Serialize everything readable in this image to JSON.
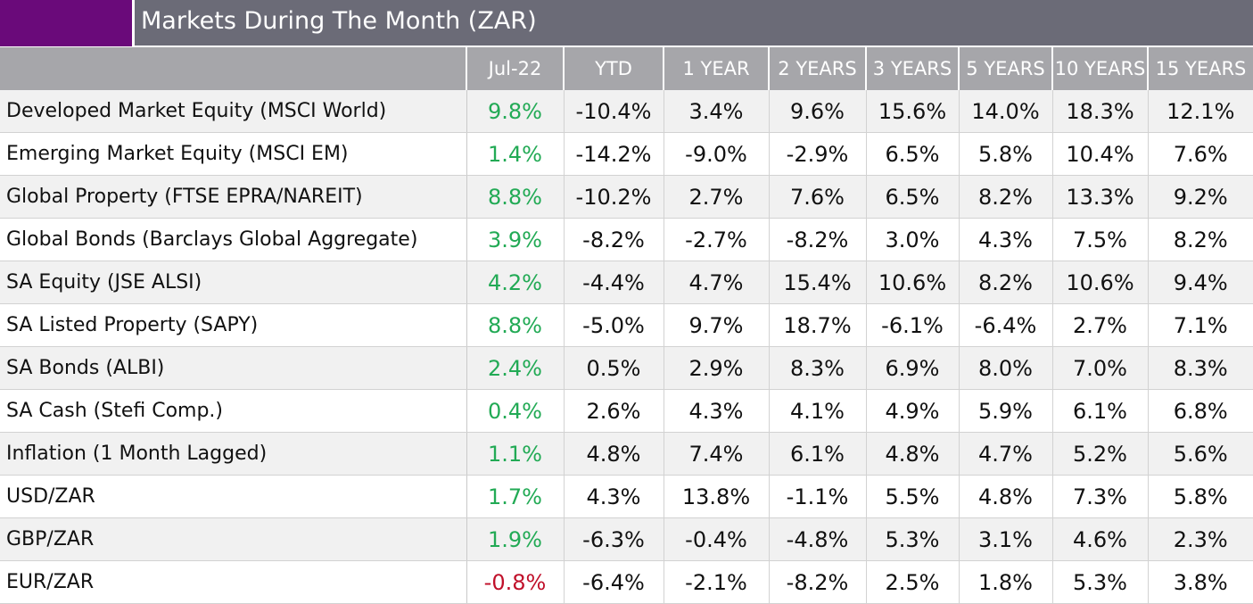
{
  "title": "Markets During The Month (ZAR)",
  "colors": {
    "accent": "#6a0a7a",
    "title_bar": "#6b6b77",
    "header_bar": "#a6a6aa",
    "positive": "#22aa55",
    "negative": "#c0102a"
  },
  "table": {
    "columns": [
      "",
      "Jul-22",
      "YTD",
      "1 YEAR",
      "2 YEARS",
      "3 YEARS",
      "5 YEARS",
      "10 YEARS",
      "15 YEARS"
    ],
    "rows": [
      {
        "label": "Developed Market Equity (MSCI World)",
        "values": [
          "9.8%",
          "-10.4%",
          "3.4%",
          "9.6%",
          "15.6%",
          "14.0%",
          "18.3%",
          "12.1%"
        ],
        "month_sign": "pos"
      },
      {
        "label": "Emerging Market Equity (MSCI EM)",
        "values": [
          "1.4%",
          "-14.2%",
          "-9.0%",
          "-2.9%",
          "6.5%",
          "5.8%",
          "10.4%",
          "7.6%"
        ],
        "month_sign": "pos"
      },
      {
        "label": "Global Property (FTSE EPRA/NAREIT)",
        "values": [
          "8.8%",
          "-10.2%",
          "2.7%",
          "7.6%",
          "6.5%",
          "8.2%",
          "13.3%",
          "9.2%"
        ],
        "month_sign": "pos"
      },
      {
        "label": "Global Bonds (Barclays Global Aggregate)",
        "values": [
          "3.9%",
          "-8.2%",
          "-2.7%",
          "-8.2%",
          "3.0%",
          "4.3%",
          "7.5%",
          "8.2%"
        ],
        "month_sign": "pos"
      },
      {
        "label": "SA Equity (JSE ALSI)",
        "values": [
          "4.2%",
          "-4.4%",
          "4.7%",
          "15.4%",
          "10.6%",
          "8.2%",
          "10.6%",
          "9.4%"
        ],
        "month_sign": "pos"
      },
      {
        "label": "SA Listed Property (SAPY)",
        "values": [
          "8.8%",
          "-5.0%",
          "9.7%",
          "18.7%",
          "-6.1%",
          "-6.4%",
          "2.7%",
          "7.1%"
        ],
        "month_sign": "pos"
      },
      {
        "label": "SA Bonds (ALBI)",
        "values": [
          "2.4%",
          "0.5%",
          "2.9%",
          "8.3%",
          "6.9%",
          "8.0%",
          "7.0%",
          "8.3%"
        ],
        "month_sign": "pos"
      },
      {
        "label": "SA Cash (Stefi Comp.)",
        "values": [
          "0.4%",
          "2.6%",
          "4.3%",
          "4.1%",
          "4.9%",
          "5.9%",
          "6.1%",
          "6.8%"
        ],
        "month_sign": "pos"
      },
      {
        "label": "Inflation (1 Month Lagged)",
        "values": [
          "1.1%",
          "4.8%",
          "7.4%",
          "6.1%",
          "4.8%",
          "4.7%",
          "5.2%",
          "5.6%"
        ],
        "month_sign": "pos"
      },
      {
        "label": "USD/ZAR",
        "values": [
          "1.7%",
          "4.3%",
          "13.8%",
          "-1.1%",
          "5.5%",
          "4.8%",
          "7.3%",
          "5.8%"
        ],
        "month_sign": "pos"
      },
      {
        "label": "GBP/ZAR",
        "values": [
          "1.9%",
          "-6.3%",
          "-0.4%",
          "-4.8%",
          "5.3%",
          "3.1%",
          "4.6%",
          "2.3%"
        ],
        "month_sign": "pos"
      },
      {
        "label": "EUR/ZAR",
        "values": [
          "-0.8%",
          "-6.4%",
          "-2.1%",
          "-8.2%",
          "2.5%",
          "1.8%",
          "5.3%",
          "3.8%"
        ],
        "month_sign": "neg"
      }
    ]
  }
}
